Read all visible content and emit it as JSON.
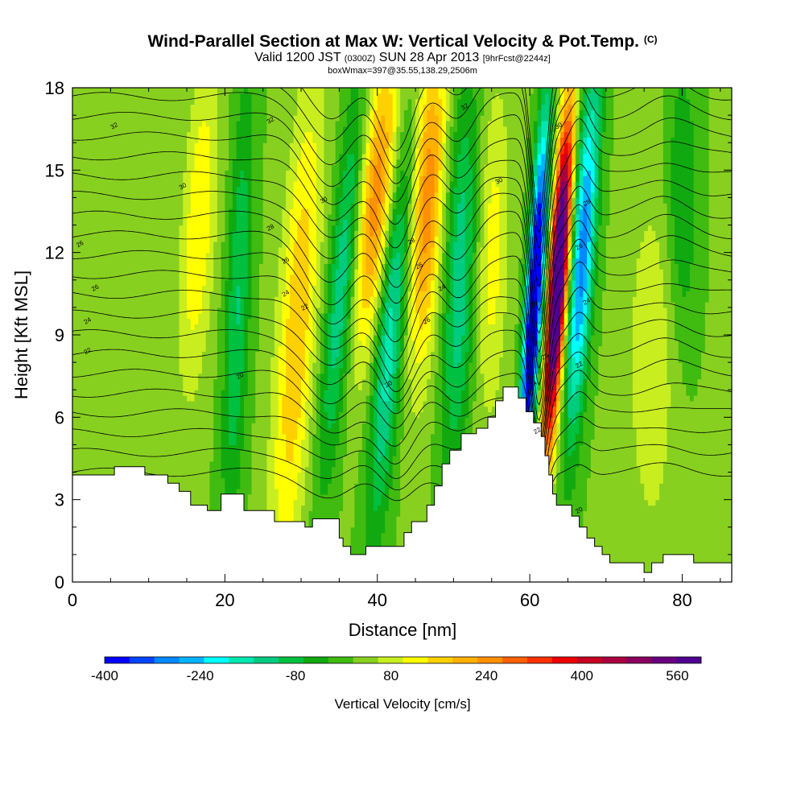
{
  "title": {
    "main": "Wind-Parallel Section at Max W: Vertical Velocity & Pot.Temp.",
    "mark": "(C)",
    "valid_a": "Valid 1200 JST",
    "valid_z": "(0300Z)",
    "valid_b": "SUN 28 Apr 2013",
    "fcst": "[9hrFcst@2244z]",
    "boxline": "boxWmax=397@35.55,138.29,2506m"
  },
  "chart_data": {
    "type": "heatmap",
    "xlabel": "Distance [nm]",
    "ylabel": "Height [Kft MSL]",
    "xlim": [
      0,
      86.5
    ],
    "ylim": [
      0,
      18
    ],
    "xticks": [
      0,
      20,
      40,
      60,
      80
    ],
    "yticks": [
      0,
      3,
      6,
      9,
      12,
      15,
      18
    ],
    "colorbar": {
      "label": "Vertical Velocity [cm/s]",
      "ticks": [
        -400,
        -240,
        -80,
        80,
        240,
        400,
        560
      ],
      "min": -400,
      "max": 600,
      "colors": [
        "#0000ff",
        "#0044ff",
        "#0088ff",
        "#00b4ff",
        "#00ffff",
        "#00e8b0",
        "#00cc80",
        "#00c040",
        "#10aa10",
        "#40bb10",
        "#88d020",
        "#c8ee20",
        "#ffff00",
        "#ffd000",
        "#ffb000",
        "#ff9000",
        "#ff6000",
        "#ff3000",
        "#ee0000",
        "#c80020",
        "#aa0040",
        "#8a0060",
        "#6a0080",
        "#500090"
      ]
    },
    "terrain_kft": [
      [
        0,
        3.9
      ],
      [
        5.5,
        3.9
      ],
      [
        5.5,
        4.2
      ],
      [
        9.5,
        4.2
      ],
      [
        9.5,
        3.9
      ],
      [
        12.5,
        3.9
      ],
      [
        12.5,
        3.6
      ],
      [
        14,
        3.6
      ],
      [
        14,
        3.3
      ],
      [
        15.5,
        3.3
      ],
      [
        15.5,
        2.8
      ],
      [
        17.7,
        2.8
      ],
      [
        17.7,
        2.6
      ],
      [
        19.5,
        2.6
      ],
      [
        19.5,
        3.2
      ],
      [
        22.5,
        3.2
      ],
      [
        22.5,
        2.6
      ],
      [
        26.5,
        2.6
      ],
      [
        26.5,
        2.2
      ],
      [
        30.5,
        2.2
      ],
      [
        30.5,
        2.0
      ],
      [
        31.5,
        2.0
      ],
      [
        31.5,
        2.3
      ],
      [
        35,
        2.3
      ],
      [
        35,
        1.6
      ],
      [
        35.5,
        1.6
      ],
      [
        35.5,
        1.3
      ],
      [
        36.5,
        1.3
      ],
      [
        36.5,
        1.0
      ],
      [
        38.5,
        1.0
      ],
      [
        38.5,
        1.3
      ],
      [
        43.5,
        1.3
      ],
      [
        43.5,
        1.8
      ],
      [
        44.5,
        1.8
      ],
      [
        44.5,
        2.2
      ],
      [
        46.5,
        2.2
      ],
      [
        46.5,
        2.8
      ],
      [
        47.5,
        2.8
      ],
      [
        47.5,
        3.5
      ],
      [
        48.5,
        3.5
      ],
      [
        48.5,
        4.3
      ],
      [
        49.5,
        4.3
      ],
      [
        49.5,
        4.8
      ],
      [
        51,
        4.8
      ],
      [
        51,
        5.4
      ],
      [
        53,
        5.4
      ],
      [
        53,
        5.6
      ],
      [
        54.5,
        5.6
      ],
      [
        54.5,
        6.0
      ],
      [
        55.5,
        6.0
      ],
      [
        55.5,
        6.6
      ],
      [
        56.5,
        6.6
      ],
      [
        56.5,
        7.1
      ],
      [
        58.5,
        7.1
      ],
      [
        58.5,
        6.7
      ],
      [
        59.5,
        6.7
      ],
      [
        59.5,
        6.2
      ],
      [
        60.5,
        6.2
      ],
      [
        60.5,
        5.8
      ],
      [
        61.5,
        5.8
      ],
      [
        61.5,
        5.3
      ],
      [
        62,
        5.3
      ],
      [
        62,
        4.6
      ],
      [
        62.5,
        4.6
      ],
      [
        62.5,
        3.9
      ],
      [
        63,
        3.9
      ],
      [
        63,
        3.2
      ],
      [
        63.5,
        3.2
      ],
      [
        63.5,
        2.8
      ],
      [
        65.5,
        2.8
      ],
      [
        65.5,
        2.4
      ],
      [
        66.5,
        2.4
      ],
      [
        66.5,
        2.0
      ],
      [
        67.5,
        2.0
      ],
      [
        67.5,
        1.6
      ],
      [
        68.5,
        1.6
      ],
      [
        68.5,
        1.3
      ],
      [
        69.5,
        1.3
      ],
      [
        69.5,
        1.0
      ],
      [
        70.5,
        1.0
      ],
      [
        70.5,
        0.7
      ],
      [
        75,
        0.7
      ],
      [
        75,
        0.35
      ],
      [
        76,
        0.35
      ],
      [
        76,
        0.7
      ],
      [
        77.5,
        0.7
      ],
      [
        77.5,
        1.0
      ],
      [
        81.5,
        1.0
      ],
      [
        81.5,
        0.7
      ],
      [
        86.5,
        0.7
      ]
    ],
    "contour_labels": [
      {
        "x": 5.5,
        "y": 16.6,
        "text": "32"
      },
      {
        "x": 26,
        "y": 16.8,
        "text": "32"
      },
      {
        "x": 51.5,
        "y": 17.3,
        "text": "32"
      },
      {
        "x": 63.8,
        "y": 16.6,
        "text": "30"
      },
      {
        "x": 14.5,
        "y": 14.4,
        "text": "30"
      },
      {
        "x": 33,
        "y": 13.9,
        "text": "30"
      },
      {
        "x": 56,
        "y": 14.6,
        "text": "30"
      },
      {
        "x": 1,
        "y": 12.3,
        "text": "26"
      },
      {
        "x": 26,
        "y": 12.9,
        "text": "28"
      },
      {
        "x": 44.5,
        "y": 12.4,
        "text": "28"
      },
      {
        "x": 67.5,
        "y": 13.8,
        "text": "28"
      },
      {
        "x": 28,
        "y": 11.7,
        "text": "26"
      },
      {
        "x": 45.5,
        "y": 11.5,
        "text": "26"
      },
      {
        "x": 66.5,
        "y": 12.2,
        "text": "26"
      },
      {
        "x": 3,
        "y": 10.7,
        "text": "26"
      },
      {
        "x": 28,
        "y": 10.5,
        "text": "24"
      },
      {
        "x": 48.5,
        "y": 10.7,
        "text": "24"
      },
      {
        "x": 60.5,
        "y": 10.1,
        "text": "26"
      },
      {
        "x": 67.5,
        "y": 10.2,
        "text": "24"
      },
      {
        "x": 2,
        "y": 9.5,
        "text": "24"
      },
      {
        "x": 30.5,
        "y": 10.0,
        "text": "22"
      },
      {
        "x": 46.5,
        "y": 9.5,
        "text": "26"
      },
      {
        "x": 2,
        "y": 8.4,
        "text": "22"
      },
      {
        "x": 62,
        "y": 8.2,
        "text": "26"
      },
      {
        "x": 66.5,
        "y": 7.9,
        "text": "22"
      },
      {
        "x": 22,
        "y": 7.5,
        "text": "20"
      },
      {
        "x": 41.5,
        "y": 7.2,
        "text": "20"
      },
      {
        "x": 60.5,
        "y": 7.2,
        "text": "24"
      },
      {
        "x": 61,
        "y": 5.5,
        "text": "22"
      },
      {
        "x": 66.5,
        "y": 2.6,
        "text": "20"
      }
    ]
  }
}
